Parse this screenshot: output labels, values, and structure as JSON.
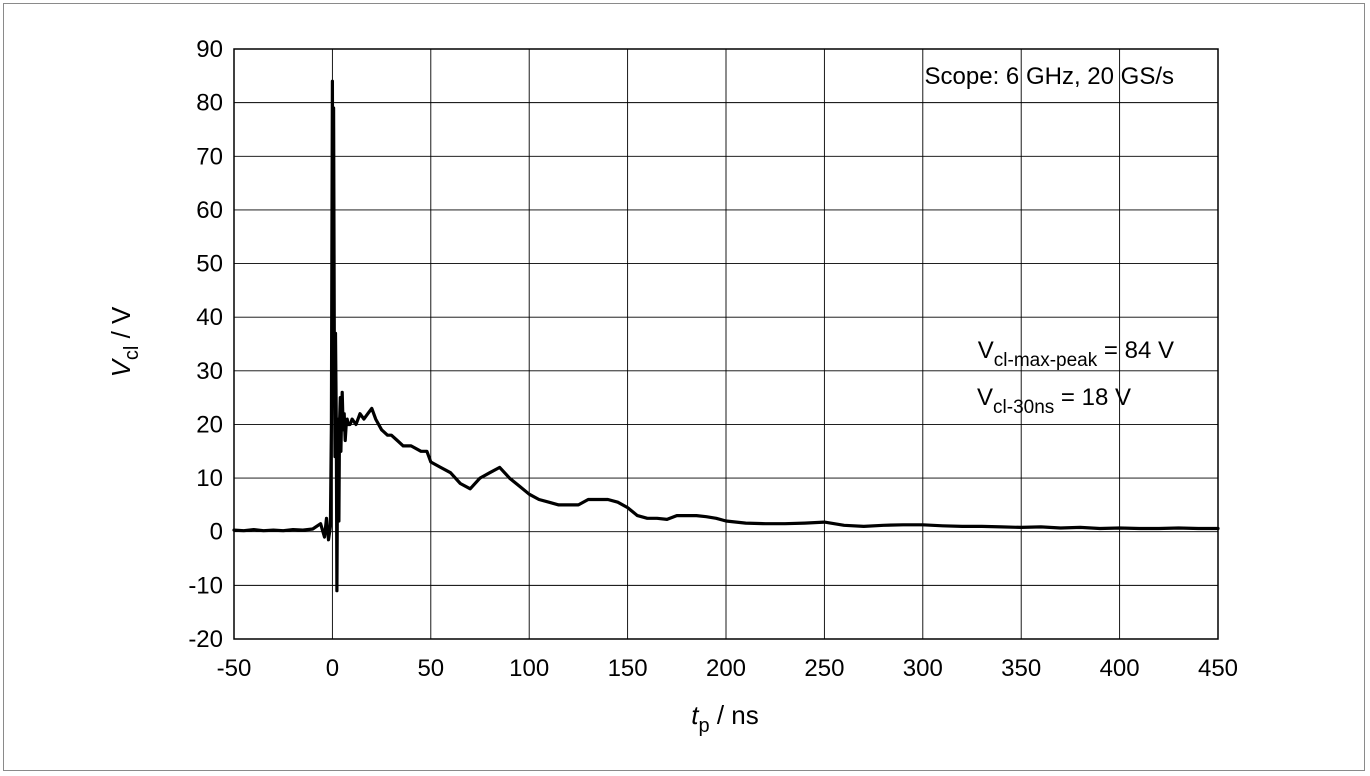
{
  "chart_data": {
    "type": "line",
    "xlabel_main": "t",
    "xlabel_sub": "p",
    "xlabel_unit": " / ns",
    "ylabel_main": "V",
    "ylabel_sub": "cl",
    "ylabel_unit": " / V",
    "xlim": [
      -50,
      450
    ],
    "ylim": [
      -20,
      90
    ],
    "xticks": [
      -50,
      0,
      50,
      100,
      150,
      200,
      250,
      300,
      350,
      400,
      450
    ],
    "yticks": [
      -20,
      -10,
      0,
      10,
      20,
      30,
      40,
      50,
      60,
      70,
      80,
      90
    ],
    "grid": true,
    "series_color": "#000000",
    "annotations": {
      "scope": "Scope: 6 GHz, 20 GS/s",
      "peak_main": "V",
      "peak_sub": "cl-max-peak",
      "peak_value": " = 84 V",
      "v30_main": "V",
      "v30_sub": "cl-30ns",
      "v30_value": " = 18 V"
    },
    "series": [
      {
        "x": [
          -50,
          -45,
          -40,
          -35,
          -30,
          -25,
          -20,
          -15,
          -10,
          -6,
          -4,
          -3,
          -2,
          -1,
          -0.5,
          -0.2,
          0,
          0.3,
          0.6,
          1,
          1.3,
          1.6,
          2,
          2.3,
          2.6,
          3,
          3.3,
          3.6,
          4,
          4.3,
          4.6,
          5,
          5.5,
          6,
          6.5,
          7,
          7.5,
          8,
          9,
          10,
          12,
          14,
          16,
          18,
          20,
          22,
          25,
          28,
          30,
          33,
          36,
          40,
          45,
          48,
          50,
          55,
          60,
          65,
          70,
          75,
          80,
          85,
          90,
          95,
          100,
          105,
          110,
          115,
          120,
          125,
          130,
          135,
          140,
          145,
          150,
          155,
          160,
          165,
          170,
          175,
          180,
          185,
          190,
          195,
          200,
          210,
          220,
          230,
          240,
          250,
          260,
          270,
          280,
          290,
          300,
          310,
          320,
          330,
          340,
          350,
          360,
          370,
          380,
          390,
          400,
          410,
          420,
          430,
          440,
          450
        ],
        "values": [
          0.3,
          0.2,
          0.4,
          0.2,
          0.3,
          0.2,
          0.4,
          0.3,
          0.5,
          1.5,
          -1.0,
          2.5,
          -1.5,
          1.0,
          20,
          60,
          84,
          40,
          79,
          30,
          14,
          37,
          20,
          -11,
          10,
          21,
          2,
          20,
          25,
          15,
          21,
          26,
          19,
          22,
          17,
          20,
          21,
          20,
          20,
          21,
          20,
          22,
          21,
          22,
          23,
          21,
          19,
          18,
          18,
          17,
          16,
          16,
          15,
          15,
          13,
          12,
          11,
          9,
          8,
          10,
          11,
          12,
          10,
          8.5,
          7,
          6,
          5.5,
          5,
          5,
          5,
          6,
          6,
          6,
          5.5,
          4.5,
          3,
          2.5,
          2.5,
          2.3,
          3,
          3,
          3,
          2.8,
          2.5,
          2,
          1.6,
          1.5,
          1.5,
          1.6,
          1.8,
          1.2,
          1.0,
          1.2,
          1.3,
          1.3,
          1.1,
          1.0,
          1.0,
          0.9,
          0.8,
          0.9,
          0.7,
          0.8,
          0.6,
          0.7,
          0.6,
          0.6,
          0.7,
          0.6,
          0.6
        ]
      }
    ]
  }
}
